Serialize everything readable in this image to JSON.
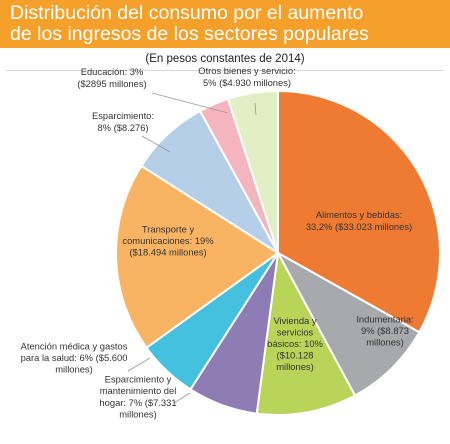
{
  "header": {
    "title_line1": "Distribución del consumo por el aumento",
    "title_line2": "de los ingresos de los sectores populares",
    "subtitle": "(En pesos constantes de 2014)"
  },
  "colors": {
    "title_band": "#f5a02a",
    "alimentos": "#ef7b32",
    "indumentaria": "#a7a9ac",
    "vivienda": "#b8d55a",
    "esparcimiento_hogar": "#8e7cb5",
    "salud": "#45c1e0",
    "transporte": "#f9b463",
    "esparcimiento": "#b6cfe8",
    "educacion": "#f4b5bf",
    "otros": "#e2eec4"
  },
  "chart_data": {
    "type": "pie",
    "title": "Distribución del consumo por el aumento de los ingresos de los sectores populares",
    "subtitle": "(En pesos constantes de 2014)",
    "units": "pesos constantes de 2014",
    "start_angle_deg": 0,
    "direction": "clockwise",
    "slices": [
      {
        "key": "alimentos",
        "percent": 33.2,
        "amount_millions": 33023,
        "label_lines": [
          "Alimentos y bebidas:",
          "33,2% ($33.023 millones)"
        ]
      },
      {
        "key": "indumentaria",
        "percent": 9,
        "amount_millions": 8873,
        "label_lines": [
          "Indumentaria:",
          "9% ($8.873",
          "millones)"
        ]
      },
      {
        "key": "vivienda",
        "percent": 10,
        "amount_millions": 10128,
        "label_lines": [
          "Vivienda y",
          "servicios",
          "básicos: 10%",
          "($10.128",
          "millones)"
        ]
      },
      {
        "key": "esparcimiento_hogar",
        "percent": 7,
        "amount_millions": 7331,
        "label_lines": [
          "Esparcimiento y",
          "mantenimiento del",
          "hogar: 7% ($7.331",
          "millones)"
        ]
      },
      {
        "key": "salud",
        "percent": 6,
        "amount_millions": 5600,
        "label_lines": [
          "Atención médica y gastos",
          "para la salud: 6% ($5.600",
          "millones)"
        ]
      },
      {
        "key": "transporte",
        "percent": 19,
        "amount_millions": 18494,
        "label_lines": [
          "Transporte y",
          "comunicaciones: 19%",
          "($18.494 millones)"
        ]
      },
      {
        "key": "esparcimiento",
        "percent": 8,
        "amount_millions": 8276,
        "label_lines": [
          "Esparcimiento:",
          "8% ($8.276)"
        ]
      },
      {
        "key": "educacion",
        "percent": 3,
        "amount_millions": 2895,
        "label_lines": [
          "Educación: 3%",
          "($2895 millones)"
        ]
      },
      {
        "key": "otros",
        "percent": 5,
        "amount_millions": 4930,
        "label_lines": [
          "Otros bienes y servicio:",
          "5% ($4.930 millones)"
        ]
      }
    ]
  }
}
